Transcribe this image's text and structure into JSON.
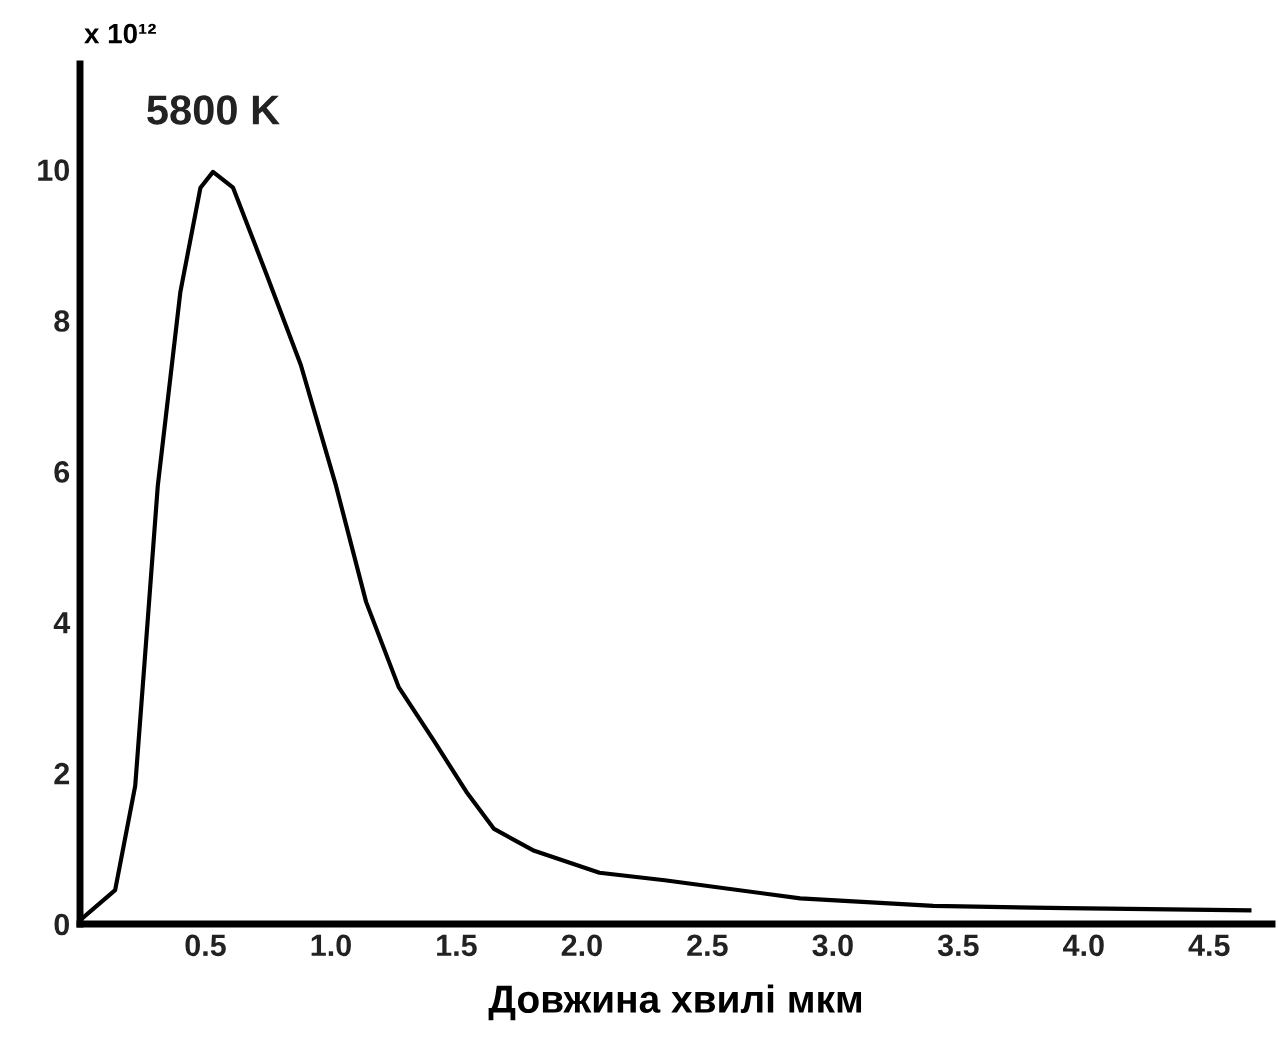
{
  "chart_data": {
    "type": "line",
    "xlabel": "Довжина хвилі мкм",
    "annotations": [
      "x 10¹²"
    ],
    "xlim": [
      0,
      4.75
    ],
    "ylim": [
      0,
      11.4
    ],
    "xticks": [
      0.5,
      {
        "value": 1,
        "label": "1.0"
      },
      1.5,
      {
        "value": 2,
        "label": "2.0"
      },
      2.5,
      {
        "value": 3,
        "label": "3.0"
      },
      3.5,
      {
        "value": 4,
        "label": "4.0"
      },
      4.5
    ],
    "yticks": [
      0,
      2,
      4,
      6,
      8,
      10
    ],
    "grid": false,
    "legend": false,
    "marker": "none",
    "line_style": "solid",
    "series": [
      {
        "name": "5800 K",
        "color": "#000000",
        "x": [
          0,
          0.14,
          0.22,
          0.26,
          0.31,
          0.4,
          0.48,
          0.53,
          0.61,
          0.74,
          0.88,
          1.02,
          1.14,
          1.27,
          1.41,
          1.54,
          1.65,
          1.81,
          2.07,
          2.33,
          2.87,
          3.4,
          3.93,
          4.66
        ],
        "values": [
          0.05,
          0.45,
          1.83,
          3.59,
          5.81,
          8.38,
          9.76,
          9.97,
          9.76,
          8.64,
          7.41,
          5.81,
          4.27,
          3.14,
          2.43,
          1.75,
          1.26,
          0.97,
          0.68,
          0.58,
          0.34,
          0.24,
          0.21,
          0.18
        ]
      }
    ]
  }
}
